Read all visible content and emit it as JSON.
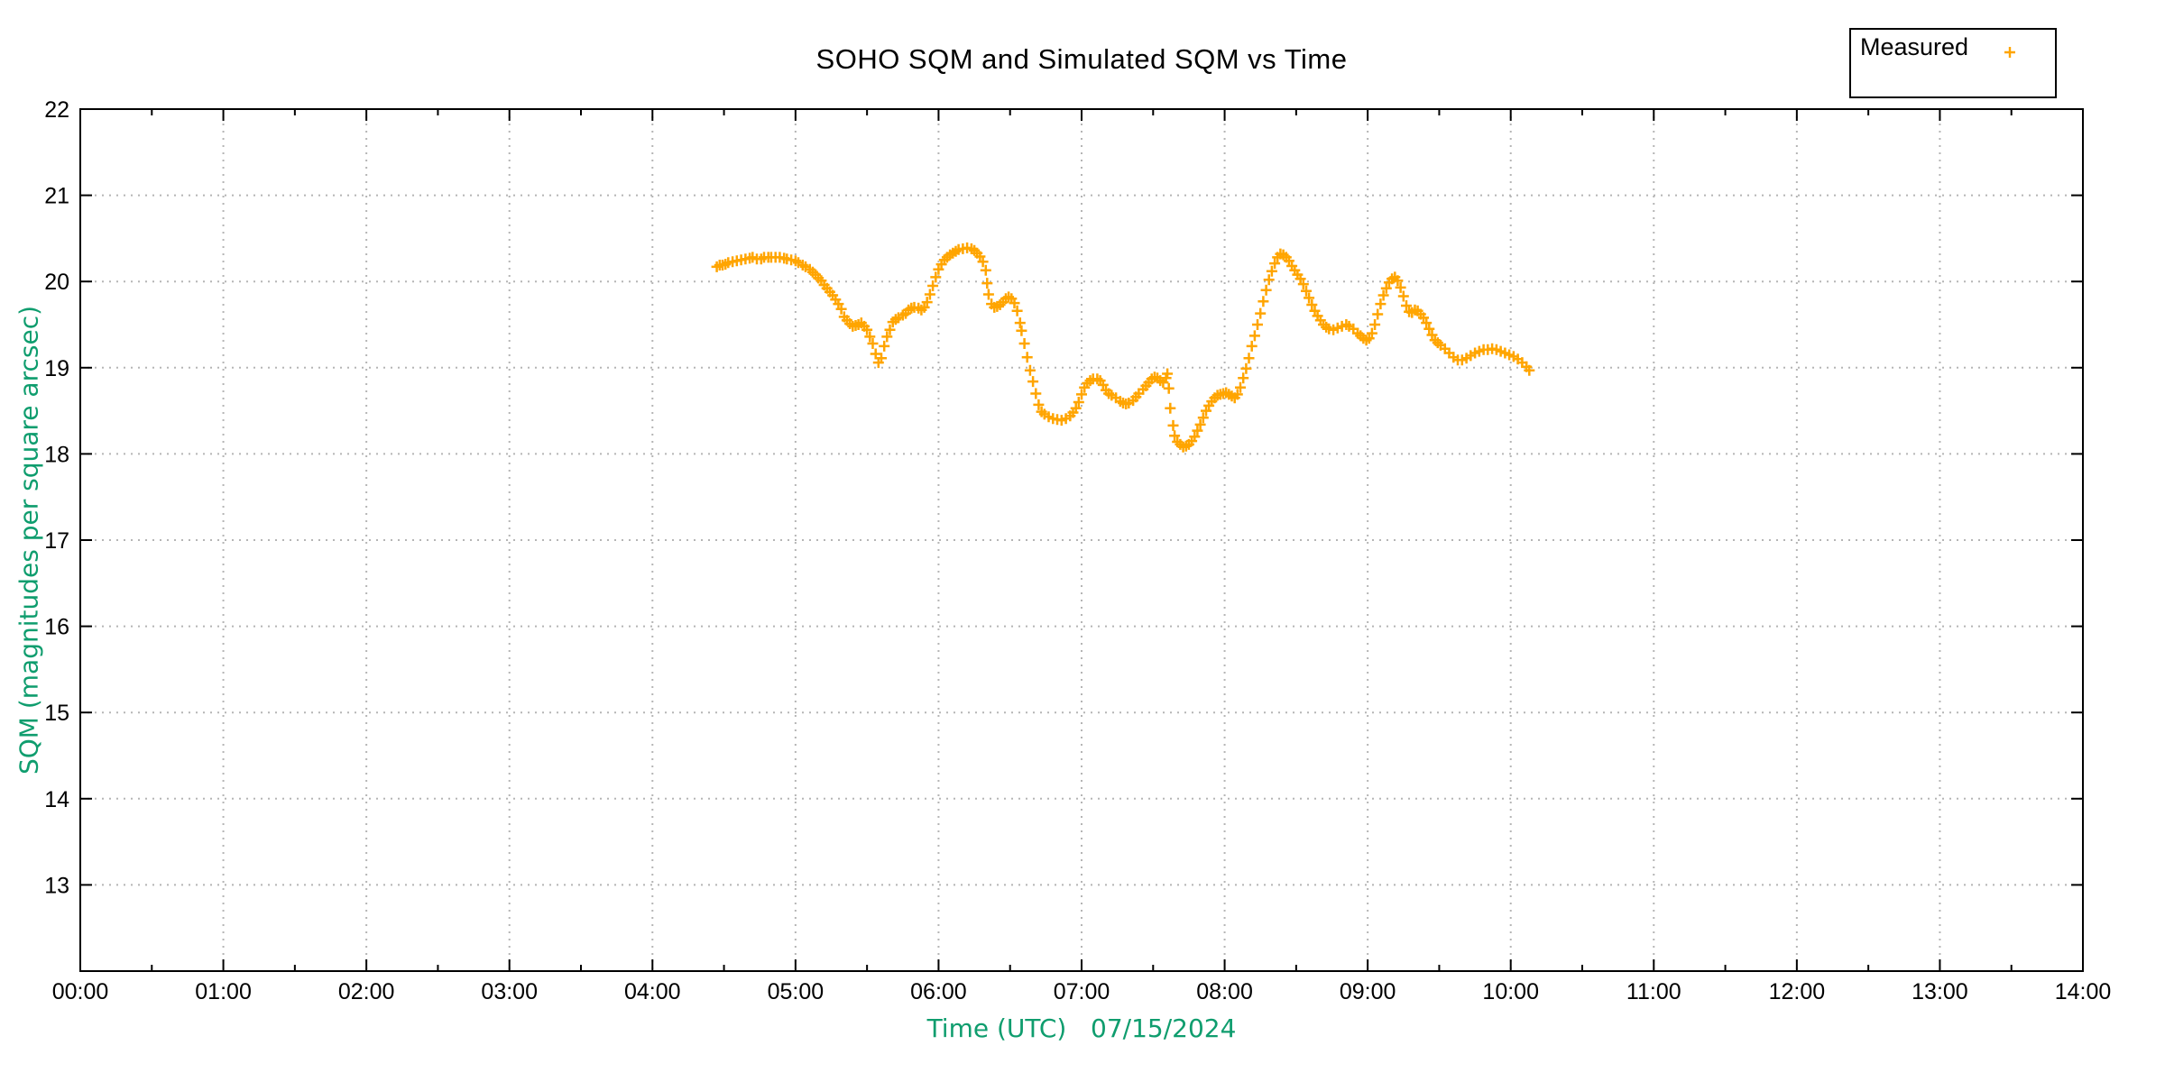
{
  "chart": {
    "title": "SOHO SQM and Simulated SQM vs Time",
    "xlabel": "Time (UTC)   07/15/2024",
    "ylabel": "SQM (magnitudes per square arcsec)",
    "legend": {
      "position": "top-right",
      "entries": [
        {
          "label": "Measured",
          "marker": "plus",
          "color": "#ffa500"
        }
      ]
    }
  },
  "colors": {
    "accent_orange": "#ffa500",
    "label_green": "#0f9d6e",
    "grid": "#b5b5b5",
    "axis": "#000000",
    "background": "#ffffff"
  },
  "chart_data": {
    "type": "scatter",
    "title": "SOHO SQM and Simulated SQM vs Time",
    "xlabel": "Time (UTC)",
    "date": "07/15/2024",
    "ylabel": "SQM (magnitudes per square arcsec)",
    "xlim": [
      0,
      14
    ],
    "ylim": [
      12,
      22
    ],
    "grid": true,
    "x_minor_step": 0.5,
    "marker": "plus",
    "xticks": [
      {
        "value": 0,
        "label": "00:00"
      },
      {
        "value": 1,
        "label": "01:00"
      },
      {
        "value": 2,
        "label": "02:00"
      },
      {
        "value": 3,
        "label": "03:00"
      },
      {
        "value": 4,
        "label": "04:00"
      },
      {
        "value": 5,
        "label": "05:00"
      },
      {
        "value": 6,
        "label": "06:00"
      },
      {
        "value": 7,
        "label": "07:00"
      },
      {
        "value": 8,
        "label": "08:00"
      },
      {
        "value": 9,
        "label": "09:00"
      },
      {
        "value": 10,
        "label": "10:00"
      },
      {
        "value": 11,
        "label": "11:00"
      },
      {
        "value": 12,
        "label": "12:00"
      },
      {
        "value": 13,
        "label": "13:00"
      },
      {
        "value": 14,
        "label": "14:00"
      }
    ],
    "yticks": [
      13,
      14,
      15,
      16,
      17,
      18,
      19,
      20,
      21,
      22
    ],
    "series": [
      {
        "name": "Measured",
        "color": "#ffa500",
        "points": [
          [
            4.45,
            20.17
          ],
          [
            4.47,
            20.19
          ],
          [
            4.49,
            20.19
          ],
          [
            4.51,
            20.2
          ],
          [
            4.53,
            20.22
          ],
          [
            4.56,
            20.23
          ],
          [
            4.59,
            20.24
          ],
          [
            4.62,
            20.25
          ],
          [
            4.65,
            20.26
          ],
          [
            4.68,
            20.27
          ],
          [
            4.7,
            20.28
          ],
          [
            4.73,
            20.26
          ],
          [
            4.76,
            20.26
          ],
          [
            4.78,
            20.28
          ],
          [
            4.81,
            20.28
          ],
          [
            4.83,
            20.28
          ],
          [
            4.86,
            20.28
          ],
          [
            4.89,
            20.28
          ],
          [
            4.92,
            20.27
          ],
          [
            4.94,
            20.26
          ],
          [
            4.97,
            20.25
          ],
          [
            5.0,
            20.24
          ],
          [
            5.02,
            20.22
          ],
          [
            5.05,
            20.19
          ],
          [
            5.07,
            20.17
          ],
          [
            5.1,
            20.14
          ],
          [
            5.12,
            20.11
          ],
          [
            5.14,
            20.08
          ],
          [
            5.16,
            20.04
          ],
          [
            5.18,
            20.01
          ],
          [
            5.2,
            19.96
          ],
          [
            5.22,
            19.92
          ],
          [
            5.24,
            19.88
          ],
          [
            5.26,
            19.84
          ],
          [
            5.28,
            19.79
          ],
          [
            5.3,
            19.74
          ],
          [
            5.32,
            19.68
          ],
          [
            5.34,
            19.59
          ],
          [
            5.36,
            19.55
          ],
          [
            5.38,
            19.51
          ],
          [
            5.4,
            19.48
          ],
          [
            5.42,
            19.49
          ],
          [
            5.44,
            19.5
          ],
          [
            5.46,
            19.52
          ],
          [
            5.48,
            19.48
          ],
          [
            5.5,
            19.44
          ],
          [
            5.52,
            19.36
          ],
          [
            5.54,
            19.28
          ],
          [
            5.56,
            19.16
          ],
          [
            5.58,
            19.06
          ],
          [
            5.6,
            19.11
          ],
          [
            5.62,
            19.25
          ],
          [
            5.64,
            19.36
          ],
          [
            5.66,
            19.44
          ],
          [
            5.68,
            19.53
          ],
          [
            5.7,
            19.56
          ],
          [
            5.72,
            19.58
          ],
          [
            5.75,
            19.61
          ],
          [
            5.77,
            19.63
          ],
          [
            5.79,
            19.67
          ],
          [
            5.81,
            19.69
          ],
          [
            5.83,
            19.7
          ],
          [
            5.86,
            19.69
          ],
          [
            5.88,
            19.67
          ],
          [
            5.9,
            19.7
          ],
          [
            5.92,
            19.76
          ],
          [
            5.94,
            19.85
          ],
          [
            5.96,
            19.95
          ],
          [
            5.98,
            20.05
          ],
          [
            6.0,
            20.14
          ],
          [
            6.02,
            20.2
          ],
          [
            6.04,
            20.25
          ],
          [
            6.06,
            20.28
          ],
          [
            6.08,
            20.31
          ],
          [
            6.1,
            20.33
          ],
          [
            6.12,
            20.35
          ],
          [
            6.14,
            20.37
          ],
          [
            6.17,
            20.38
          ],
          [
            6.2,
            20.39
          ],
          [
            6.23,
            20.38
          ],
          [
            6.25,
            20.36
          ],
          [
            6.27,
            20.33
          ],
          [
            6.29,
            20.29
          ],
          [
            6.31,
            20.23
          ],
          [
            6.33,
            20.13
          ],
          [
            6.34,
            19.98
          ],
          [
            6.35,
            19.85
          ],
          [
            6.37,
            19.74
          ],
          [
            6.39,
            19.7
          ],
          [
            6.41,
            19.71
          ],
          [
            6.43,
            19.73
          ],
          [
            6.45,
            19.76
          ],
          [
            6.47,
            19.8
          ],
          [
            6.49,
            19.82
          ],
          [
            6.51,
            19.8
          ],
          [
            6.53,
            19.75
          ],
          [
            6.55,
            19.66
          ],
          [
            6.57,
            19.52
          ],
          [
            6.58,
            19.43
          ],
          [
            6.6,
            19.28
          ],
          [
            6.62,
            19.12
          ],
          [
            6.64,
            18.97
          ],
          [
            6.66,
            18.84
          ],
          [
            6.68,
            18.7
          ],
          [
            6.7,
            18.57
          ],
          [
            6.72,
            18.49
          ],
          [
            6.74,
            18.46
          ],
          [
            6.77,
            18.43
          ],
          [
            6.8,
            18.41
          ],
          [
            6.83,
            18.4
          ],
          [
            6.86,
            18.39
          ],
          [
            6.89,
            18.41
          ],
          [
            6.92,
            18.44
          ],
          [
            6.94,
            18.48
          ],
          [
            6.96,
            18.53
          ],
          [
            6.98,
            18.6
          ],
          [
            7.0,
            18.69
          ],
          [
            7.02,
            18.77
          ],
          [
            7.04,
            18.82
          ],
          [
            7.06,
            18.85
          ],
          [
            7.08,
            18.87
          ],
          [
            7.11,
            18.87
          ],
          [
            7.13,
            18.85
          ],
          [
            7.15,
            18.8
          ],
          [
            7.17,
            18.74
          ],
          [
            7.19,
            18.7
          ],
          [
            7.21,
            18.68
          ],
          [
            7.24,
            18.65
          ],
          [
            7.27,
            18.61
          ],
          [
            7.29,
            18.59
          ],
          [
            7.31,
            18.58
          ],
          [
            7.33,
            18.59
          ],
          [
            7.36,
            18.62
          ],
          [
            7.38,
            18.66
          ],
          [
            7.4,
            18.7
          ],
          [
            7.43,
            18.75
          ],
          [
            7.45,
            18.79
          ],
          [
            7.47,
            18.83
          ],
          [
            7.49,
            18.87
          ],
          [
            7.51,
            18.89
          ],
          [
            7.53,
            18.88
          ],
          [
            7.55,
            18.85
          ],
          [
            7.57,
            18.83
          ],
          [
            7.59,
            18.88
          ],
          [
            7.6,
            18.93
          ],
          [
            7.61,
            18.76
          ],
          [
            7.62,
            18.53
          ],
          [
            7.64,
            18.33
          ],
          [
            7.65,
            18.21
          ],
          [
            7.67,
            18.14
          ],
          [
            7.69,
            18.11
          ],
          [
            7.71,
            18.08
          ],
          [
            7.73,
            18.09
          ],
          [
            7.75,
            18.11
          ],
          [
            7.77,
            18.15
          ],
          [
            7.79,
            18.2
          ],
          [
            7.81,
            18.27
          ],
          [
            7.83,
            18.34
          ],
          [
            7.85,
            18.42
          ],
          [
            7.87,
            18.5
          ],
          [
            7.89,
            18.56
          ],
          [
            7.91,
            18.61
          ],
          [
            7.93,
            18.65
          ],
          [
            7.95,
            18.68
          ],
          [
            7.97,
            18.69
          ],
          [
            7.99,
            18.7
          ],
          [
            8.01,
            18.71
          ],
          [
            8.03,
            18.69
          ],
          [
            8.05,
            18.67
          ],
          [
            8.07,
            18.65
          ],
          [
            8.09,
            18.69
          ],
          [
            8.11,
            18.77
          ],
          [
            8.13,
            18.88
          ],
          [
            8.15,
            18.99
          ],
          [
            8.17,
            19.11
          ],
          [
            8.19,
            19.25
          ],
          [
            8.21,
            19.37
          ],
          [
            8.23,
            19.5
          ],
          [
            8.25,
            19.63
          ],
          [
            8.27,
            19.77
          ],
          [
            8.29,
            19.9
          ],
          [
            8.31,
            20.02
          ],
          [
            8.33,
            20.12
          ],
          [
            8.35,
            20.21
          ],
          [
            8.37,
            20.28
          ],
          [
            8.39,
            20.32
          ],
          [
            8.41,
            20.31
          ],
          [
            8.43,
            20.28
          ],
          [
            8.45,
            20.24
          ],
          [
            8.47,
            20.18
          ],
          [
            8.49,
            20.13
          ],
          [
            8.51,
            20.08
          ],
          [
            8.53,
            20.03
          ],
          [
            8.55,
            19.97
          ],
          [
            8.57,
            19.89
          ],
          [
            8.59,
            19.81
          ],
          [
            8.61,
            19.73
          ],
          [
            8.63,
            19.66
          ],
          [
            8.65,
            19.6
          ],
          [
            8.67,
            19.55
          ],
          [
            8.69,
            19.5
          ],
          [
            8.71,
            19.47
          ],
          [
            8.73,
            19.45
          ],
          [
            8.76,
            19.44
          ],
          [
            8.79,
            19.46
          ],
          [
            8.82,
            19.48
          ],
          [
            8.85,
            19.5
          ],
          [
            8.87,
            19.48
          ],
          [
            8.9,
            19.45
          ],
          [
            8.93,
            19.4
          ],
          [
            8.95,
            19.37
          ],
          [
            8.97,
            19.34
          ],
          [
            8.99,
            19.32
          ],
          [
            9.01,
            19.34
          ],
          [
            9.03,
            19.4
          ],
          [
            9.05,
            19.5
          ],
          [
            9.07,
            19.62
          ],
          [
            9.09,
            19.74
          ],
          [
            9.11,
            19.84
          ],
          [
            9.13,
            19.92
          ],
          [
            9.15,
            19.99
          ],
          [
            9.17,
            20.03
          ],
          [
            9.19,
            20.05
          ],
          [
            9.21,
            20.01
          ],
          [
            9.23,
            19.93
          ],
          [
            9.25,
            19.83
          ],
          [
            9.27,
            19.72
          ],
          [
            9.29,
            19.65
          ],
          [
            9.31,
            19.64
          ],
          [
            9.33,
            19.67
          ],
          [
            9.35,
            19.66
          ],
          [
            9.37,
            19.62
          ],
          [
            9.39,
            19.58
          ],
          [
            9.41,
            19.52
          ],
          [
            9.43,
            19.45
          ],
          [
            9.45,
            19.38
          ],
          [
            9.47,
            19.32
          ],
          [
            9.49,
            19.29
          ],
          [
            9.51,
            19.26
          ],
          [
            9.54,
            19.22
          ],
          [
            9.57,
            19.17
          ],
          [
            9.6,
            19.12
          ],
          [
            9.63,
            19.09
          ],
          [
            9.66,
            19.09
          ],
          [
            9.69,
            19.11
          ],
          [
            9.72,
            19.14
          ],
          [
            9.75,
            19.17
          ],
          [
            9.78,
            19.19
          ],
          [
            9.81,
            19.21
          ],
          [
            9.84,
            19.21
          ],
          [
            9.87,
            19.22
          ],
          [
            9.9,
            19.21
          ],
          [
            9.93,
            19.19
          ],
          [
            9.96,
            19.17
          ],
          [
            9.99,
            19.15
          ],
          [
            10.02,
            19.13
          ],
          [
            10.05,
            19.1
          ],
          [
            10.08,
            19.06
          ],
          [
            10.11,
            19.01
          ],
          [
            10.13,
            18.97
          ]
        ]
      }
    ]
  }
}
